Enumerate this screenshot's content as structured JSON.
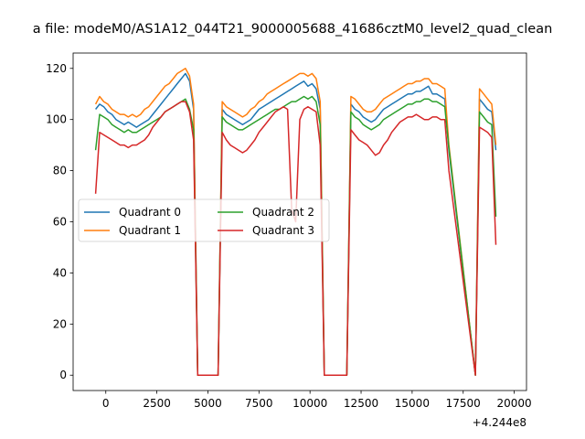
{
  "chart_data": {
    "type": "line",
    "title": "a file: modeM0/AS1A12_044T21_9000005688_41686cztM0_level2_quad_clean",
    "xlabel": "",
    "ylabel": "",
    "x_offset_label": "+4.244e8",
    "xlim": [
      -1600,
      20600
    ],
    "ylim": [
      -6,
      126
    ],
    "x_ticks": [
      0,
      2500,
      5000,
      7500,
      10000,
      12500,
      15000,
      17500,
      20000
    ],
    "x_tick_labels": [
      "0",
      "2500",
      "5000",
      "7500",
      "10000",
      "12500",
      "15000",
      "17500",
      "20000"
    ],
    "y_ticks": [
      0,
      20,
      40,
      60,
      80,
      100,
      120
    ],
    "y_tick_labels": [
      "0",
      "20",
      "40",
      "60",
      "80",
      "100",
      "120"
    ],
    "grid": false,
    "legend": {
      "placement": "center-left",
      "columns": 2
    },
    "x": [
      -500,
      -300,
      -100,
      100,
      300,
      500,
      700,
      900,
      1100,
      1300,
      1500,
      1700,
      1900,
      2100,
      2300,
      2500,
      2700,
      2900,
      3100,
      3300,
      3500,
      3700,
      3900,
      4100,
      4300,
      4500,
      5500,
      5700,
      5900,
      6100,
      6300,
      6500,
      6700,
      6900,
      7100,
      7300,
      7500,
      7700,
      7900,
      8100,
      8300,
      8500,
      8700,
      8900,
      9100,
      9300,
      9500,
      9700,
      9900,
      10100,
      10300,
      10500,
      10700,
      11800,
      12000,
      12200,
      12400,
      12600,
      12800,
      13000,
      13200,
      13400,
      13600,
      13800,
      14000,
      14200,
      14400,
      14600,
      14800,
      15000,
      15200,
      15400,
      15600,
      15800,
      16000,
      16200,
      16400,
      16600,
      16800,
      18100,
      18300,
      18500,
      18700,
      18900,
      19100
    ],
    "series": [
      {
        "name": "Quadrant 0",
        "color": "#1f77b4",
        "values": [
          104,
          106,
          105,
          103,
          102,
          100,
          99,
          98,
          99,
          98,
          97,
          98,
          99,
          100,
          102,
          104,
          106,
          108,
          110,
          112,
          114,
          116,
          118,
          115,
          104,
          0,
          0,
          104,
          102,
          101,
          100,
          99,
          98,
          99,
          100,
          102,
          104,
          105,
          106,
          107,
          108,
          109,
          110,
          111,
          112,
          113,
          114,
          115,
          113,
          114,
          112,
          104,
          0,
          0,
          106,
          104,
          103,
          101,
          100,
          99,
          100,
          102,
          104,
          105,
          106,
          107,
          108,
          109,
          110,
          110,
          111,
          111,
          112,
          113,
          110,
          110,
          109,
          108,
          88,
          0,
          108,
          106,
          104,
          103,
          88
        ]
      },
      {
        "name": "Quadrant 1",
        "color": "#ff7f0e",
        "values": [
          106,
          109,
          107,
          106,
          104,
          103,
          102,
          102,
          101,
          102,
          101,
          102,
          104,
          105,
          107,
          109,
          111,
          113,
          114,
          116,
          118,
          119,
          120,
          117,
          106,
          0,
          0,
          107,
          105,
          104,
          103,
          102,
          101,
          102,
          104,
          105,
          107,
          108,
          110,
          111,
          112,
          113,
          114,
          115,
          116,
          117,
          118,
          118,
          117,
          118,
          116,
          107,
          0,
          0,
          109,
          108,
          106,
          104,
          103,
          103,
          104,
          106,
          108,
          109,
          110,
          111,
          112,
          113,
          114,
          114,
          115,
          115,
          116,
          116,
          114,
          114,
          113,
          112,
          90,
          0,
          112,
          110,
          108,
          106,
          90
        ]
      },
      {
        "name": "Quadrant 2",
        "color": "#2ca02c",
        "values": [
          88,
          102,
          101,
          100,
          98,
          97,
          96,
          95,
          96,
          95,
          95,
          96,
          97,
          98,
          99,
          100,
          101,
          103,
          104,
          105,
          106,
          107,
          108,
          104,
          96,
          0,
          0,
          101,
          99,
          98,
          97,
          96,
          96,
          97,
          98,
          99,
          100,
          101,
          102,
          103,
          104,
          104,
          105,
          106,
          107,
          107,
          108,
          109,
          108,
          109,
          107,
          98,
          0,
          0,
          103,
          101,
          100,
          98,
          97,
          96,
          97,
          98,
          100,
          101,
          102,
          103,
          104,
          105,
          106,
          106,
          107,
          107,
          108,
          108,
          107,
          107,
          106,
          105,
          89,
          0,
          103,
          101,
          99,
          98,
          62
        ]
      },
      {
        "name": "Quadrant 3",
        "color": "#d62728",
        "values": [
          71,
          95,
          94,
          93,
          92,
          91,
          90,
          90,
          89,
          90,
          90,
          91,
          92,
          94,
          97,
          99,
          101,
          103,
          104,
          105,
          106,
          107,
          107,
          103,
          92,
          0,
          0,
          95,
          92,
          90,
          89,
          88,
          87,
          88,
          90,
          92,
          95,
          97,
          99,
          101,
          103,
          104,
          105,
          104,
          65,
          60,
          100,
          104,
          105,
          104,
          103,
          90,
          0,
          0,
          96,
          94,
          92,
          91,
          90,
          88,
          86,
          87,
          90,
          92,
          95,
          97,
          99,
          100,
          101,
          101,
          102,
          101,
          100,
          100,
          101,
          101,
          100,
          100,
          80,
          0,
          97,
          96,
          95,
          93,
          51
        ]
      }
    ]
  }
}
